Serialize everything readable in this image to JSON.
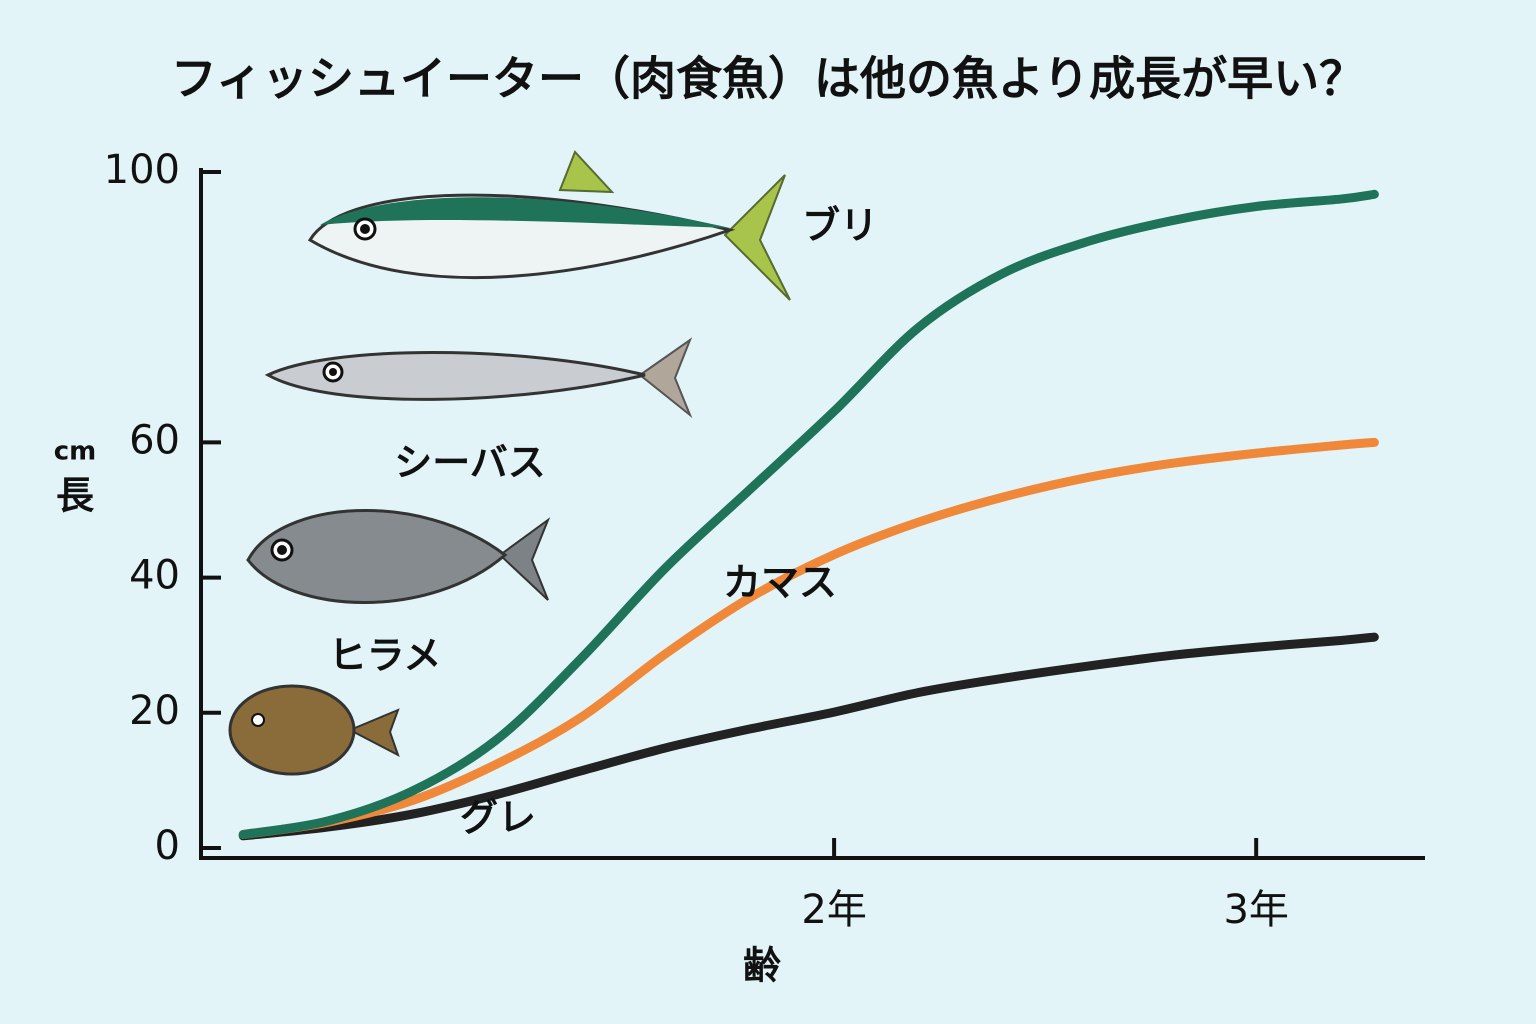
{
  "chart_data": {
    "type": "line",
    "title": "フィッシュイーター（肉食魚）は他の魚より成長が早い？",
    "x_label": "齢",
    "y_label": "長",
    "y_unit": "cm",
    "x": [
      0.6,
      0.8,
      1.0,
      1.2,
      1.4,
      1.6,
      1.8,
      2.0,
      2.2,
      2.4,
      2.6,
      2.8,
      3.0,
      3.2,
      3.28
    ],
    "series": [
      {
        "name": "ブリ",
        "color": "#1e7358",
        "values": [
          2,
          4,
          8.4,
          16,
          28,
          41.4,
          53,
          64.6,
          77,
          85,
          89.7,
          92.8,
          94.9,
          96,
          96.7
        ]
      },
      {
        "name": "カマス",
        "color": "#f0883a",
        "values": [
          2,
          3.8,
          7,
          12.4,
          19.3,
          28.7,
          37,
          43.4,
          48.2,
          51.9,
          54.8,
          56.9,
          58.4,
          59.6,
          60
        ]
      },
      {
        "name": "グレ",
        "color": "#222222",
        "values": [
          1.8,
          3.1,
          5,
          7.9,
          11.4,
          14.8,
          17.6,
          20.1,
          23,
          25.1,
          26.9,
          28.5,
          29.7,
          30.7,
          31.2
        ]
      }
    ],
    "annotations": [
      "シーバス",
      "ヒラメ"
    ],
    "xlim": [
      0.5,
      3.4
    ],
    "xticks": [
      {
        "value": 2,
        "label": "2年"
      },
      {
        "value": 3,
        "label": "3年"
      }
    ],
    "ylim": [
      0,
      100
    ],
    "yticks": [
      0,
      20,
      40,
      60,
      100
    ],
    "grid": false
  }
}
